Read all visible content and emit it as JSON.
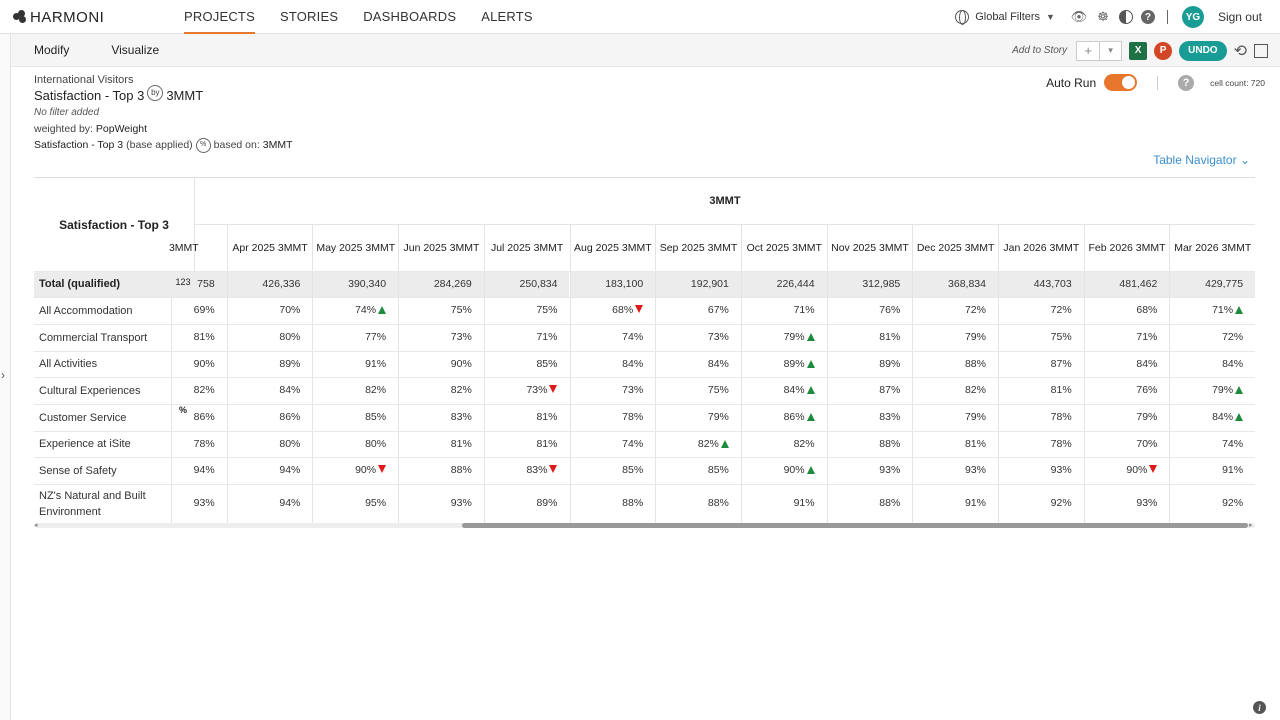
{
  "app": {
    "brand": "HARMONI",
    "nav_tabs": [
      "PROJECTS",
      "STORIES",
      "DASHBOARDS",
      "ALERTS"
    ],
    "active_tab": "PROJECTS",
    "global_filters": "Global Filters",
    "user_initials": "YG",
    "sign_out": "Sign out",
    "accent": "#e8772e",
    "teal": "#1a9c96"
  },
  "toolbar": {
    "tabs": [
      "Modify",
      "Visualize"
    ],
    "add_to_story": "Add to Story",
    "excel": "X",
    "ppt": "P",
    "undo": "UNDO"
  },
  "header": {
    "crumb": "International Visitors",
    "title_left": "Satisfaction - Top 3",
    "by_badge": "by",
    "title_right": "3MMT",
    "no_filter": "No filter added",
    "weighted_label": "weighted by:",
    "weighted_value": "PopWeight",
    "base_label": "Satisfaction - Top 3",
    "base_applied": "(base applied)",
    "pct_badge": "%",
    "based_on_label": "based on:",
    "based_on_value": "3MMT"
  },
  "autorun": {
    "label": "Auto Run",
    "on": true,
    "help": "?",
    "cell_count": "cell count: 720"
  },
  "table_navigator": "Table Navigator",
  "table": {
    "corner_title": "Satisfaction - Top 3",
    "group_header": "3MMT",
    "stat_total": "123",
    "stat_pct": "%",
    "columns": [
      "3MMT",
      "Apr 2025 3MMT",
      "May 2025 3MMT",
      "Jun 2025 3MMT",
      "Jul 2025 3MMT",
      "Aug 2025 3MMT",
      "Sep 2025 3MMT",
      "Oct 2025 3MMT",
      "Nov 2025 3MMT",
      "Dec 2025 3MMT",
      "Jan 2026 3MMT",
      "Feb 2026 3MMT",
      "Mar 2026 3MMT"
    ],
    "rows": [
      {
        "label": "Total (qualified)",
        "values": [
          "758",
          "426,336",
          "390,340",
          "284,269",
          "250,834",
          "183,100",
          "192,901",
          "226,444",
          "312,985",
          "368,834",
          "443,703",
          "481,462",
          "429,775"
        ],
        "flags": [
          "",
          "",
          "",
          "",
          "",
          "",
          "",
          "",
          "",
          "",
          "",
          "",
          ""
        ]
      },
      {
        "label": "All Accommodation",
        "values": [
          "69%",
          "70%",
          "74%",
          "75%",
          "75%",
          "68%",
          "67%",
          "71%",
          "76%",
          "72%",
          "72%",
          "68%",
          "71%"
        ],
        "flags": [
          "",
          "",
          "up",
          "",
          "",
          "down",
          "",
          "",
          "",
          "",
          "",
          "",
          "up"
        ]
      },
      {
        "label": "Commercial Transport",
        "values": [
          "81%",
          "80%",
          "77%",
          "73%",
          "71%",
          "74%",
          "73%",
          "79%",
          "81%",
          "79%",
          "75%",
          "71%",
          "72%"
        ],
        "flags": [
          "",
          "",
          "",
          "",
          "",
          "",
          "",
          "up",
          "",
          "",
          "",
          "",
          ""
        ]
      },
      {
        "label": "All Activities",
        "values": [
          "90%",
          "89%",
          "91%",
          "90%",
          "85%",
          "84%",
          "84%",
          "89%",
          "89%",
          "88%",
          "87%",
          "84%",
          "84%"
        ],
        "flags": [
          "",
          "",
          "",
          "",
          "",
          "",
          "",
          "up",
          "",
          "",
          "",
          "",
          ""
        ]
      },
      {
        "label": "Cultural Experiences",
        "values": [
          "82%",
          "84%",
          "82%",
          "82%",
          "73%",
          "73%",
          "75%",
          "84%",
          "87%",
          "82%",
          "81%",
          "76%",
          "79%"
        ],
        "flags": [
          "",
          "",
          "",
          "",
          "down",
          "",
          "",
          "up",
          "",
          "",
          "",
          "",
          "up"
        ]
      },
      {
        "label": "Customer Service",
        "values": [
          "86%",
          "86%",
          "85%",
          "83%",
          "81%",
          "78%",
          "79%",
          "86%",
          "83%",
          "79%",
          "78%",
          "79%",
          "84%"
        ],
        "flags": [
          "",
          "",
          "",
          "",
          "",
          "",
          "",
          "up",
          "",
          "",
          "",
          "",
          "up"
        ]
      },
      {
        "label": "Experience at iSite",
        "values": [
          "78%",
          "80%",
          "80%",
          "81%",
          "81%",
          "74%",
          "82%",
          "82%",
          "88%",
          "81%",
          "78%",
          "70%",
          "74%"
        ],
        "flags": [
          "",
          "",
          "",
          "",
          "",
          "",
          "up",
          "",
          "",
          "",
          "",
          "",
          ""
        ]
      },
      {
        "label": "Sense of Safety",
        "values": [
          "94%",
          "94%",
          "90%",
          "88%",
          "83%",
          "85%",
          "85%",
          "90%",
          "93%",
          "93%",
          "93%",
          "90%",
          "91%"
        ],
        "flags": [
          "",
          "",
          "down",
          "",
          "down",
          "",
          "",
          "up",
          "",
          "",
          "",
          "down",
          ""
        ]
      },
      {
        "label": "NZ's Natural and Built Environment",
        "values": [
          "93%",
          "94%",
          "95%",
          "93%",
          "89%",
          "88%",
          "88%",
          "91%",
          "88%",
          "91%",
          "92%",
          "93%",
          "92%"
        ],
        "flags": [
          "",
          "",
          "",
          "",
          "",
          "",
          "",
          "",
          "",
          "",
          "",
          "",
          ""
        ]
      }
    ]
  }
}
